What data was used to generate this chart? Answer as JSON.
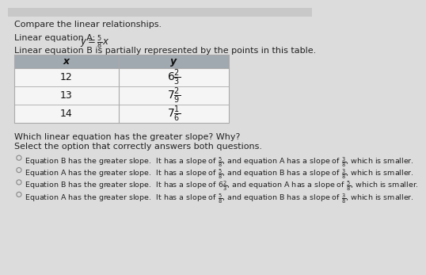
{
  "title_line": "Compare the linear relationships.",
  "eq_a_text": "Linear equation A: ",
  "eq_a_math": "$y = \\frac{5}{8}x$",
  "eq_b_label": "Linear equation B is partially represented by the points in this table.",
  "table_header_x": "x",
  "table_header_y": "y",
  "table_x_values": [
    "12",
    "13",
    "14"
  ],
  "table_y_values": [
    "$6\\frac{2}{3}$",
    "$7\\frac{2}{9}$",
    "$7\\frac{1}{6}$"
  ],
  "question1": "Which linear equation has the greater slope? Why?",
  "question2": "Select the option that correctly answers both questions.",
  "option_lines": [
    "Equation B has the greater slope.  It has a slope of $\\frac{5}{8}$, and equation A has a slope of $\\frac{3}{8}$, which is smaller.",
    "Equation A has the greater slope.  It has a slope of $\\frac{5}{8}$, and equation B has a slope of $\\frac{3}{8}$, which is smaller.",
    "Equation B has the greater slope.  It has a slope of $6\\frac{2}{3}$, and equation A has a slope of $\\frac{5}{8}$, which is smaller.",
    "Equation A has the greater slope.  It has a slope of $\\frac{5}{8}$, and equation B has a slope of $\\frac{3}{8}$, which is smaller."
  ],
  "bg_color": "#dcdcdc",
  "table_header_bg": "#a0a8b0",
  "table_row_bg": "#f5f5f5",
  "table_border_color": "#aaaaaa",
  "text_color": "#222222",
  "circle_color": "#888888"
}
